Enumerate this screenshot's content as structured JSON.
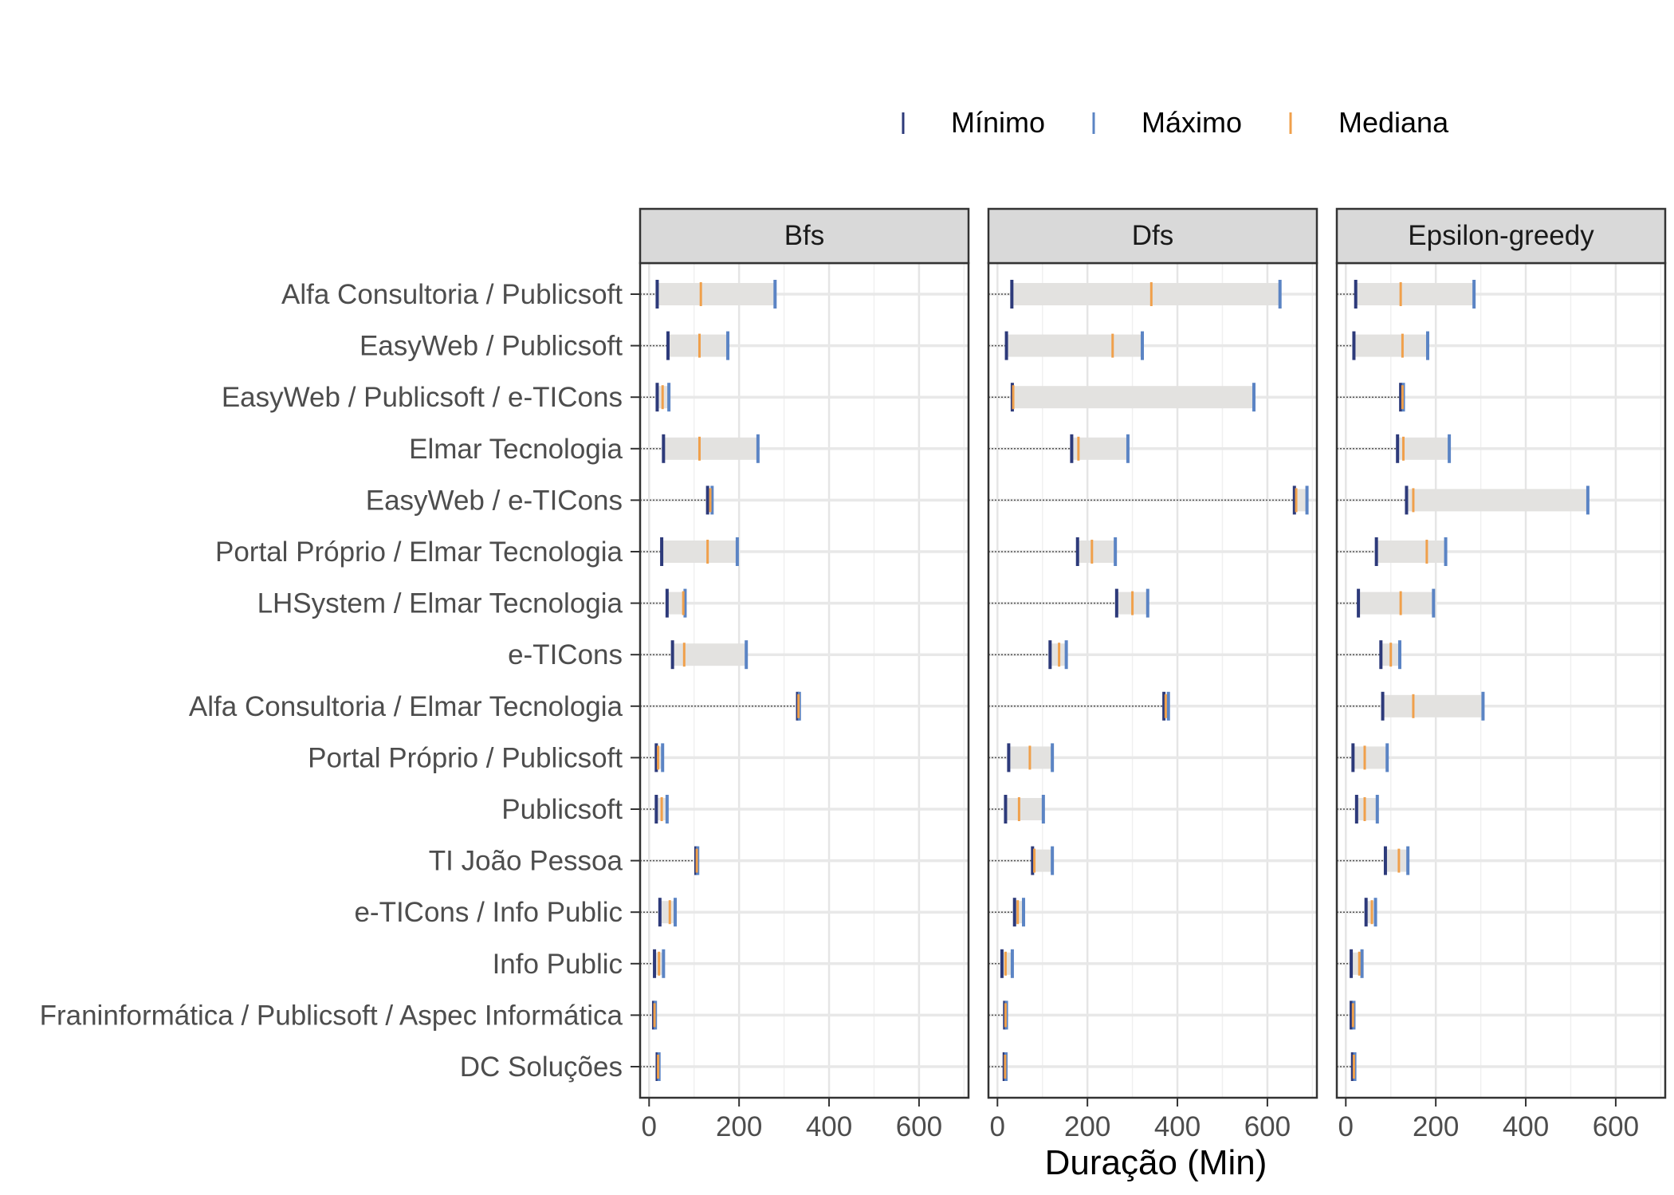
{
  "chart_data": {
    "type": "range",
    "xlabel": "Duração (Min)",
    "ylabel": "",
    "xlim": [
      -20,
      710
    ],
    "xticks": [
      0,
      200,
      400,
      600
    ],
    "grid": true,
    "legend": {
      "position": "top-right",
      "items": [
        {
          "name": "Mínimo",
          "key": "min",
          "color": "#2d3a7a"
        },
        {
          "name": "Máximo",
          "key": "max",
          "color": "#5b84c4"
        },
        {
          "name": "Mediana",
          "key": "median",
          "color": "#f0a04b"
        }
      ]
    },
    "categories": [
      "Alfa Consultoria / Publicsoft",
      "EasyWeb / Publicsoft",
      "EasyWeb / Publicsoft / e-TICons",
      "Elmar Tecnologia",
      "EasyWeb / e-TICons",
      "Portal Próprio / Elmar Tecnologia",
      "LHSystem / Elmar Tecnologia",
      "e-TICons",
      "Alfa Consultoria / Elmar Tecnologia",
      "Portal Próprio / Publicsoft",
      "Publicsoft",
      "TI João Pessoa",
      "e-TICons / Info Public",
      "Info Public",
      "Franinformática / Publicsoft / Aspec Informática",
      "DC Soluções"
    ],
    "panels": [
      {
        "name": "Bfs",
        "min": [
          18,
          42,
          18,
          32,
          130,
          28,
          40,
          52,
          330,
          16,
          16,
          104,
          24,
          12,
          10,
          18
        ],
        "median": [
          115,
          112,
          30,
          112,
          136,
          130,
          76,
          78,
          332,
          20,
          28,
          106,
          46,
          22,
          12,
          20
        ],
        "max": [
          280,
          175,
          44,
          242,
          140,
          196,
          80,
          216,
          334,
          30,
          40,
          108,
          58,
          32,
          14,
          22
        ]
      },
      {
        "name": "Dfs",
        "min": [
          32,
          20,
          33,
          165,
          660,
          178,
          265,
          117,
          370,
          25,
          18,
          78,
          38,
          10,
          16,
          15
        ],
        "median": [
          342,
          256,
          35,
          180,
          664,
          210,
          300,
          137,
          374,
          72,
          48,
          82,
          45,
          18,
          18,
          17
        ],
        "max": [
          628,
          322,
          570,
          290,
          688,
          262,
          334,
          153,
          380,
          122,
          102,
          122,
          58,
          33,
          20,
          19
        ]
      },
      {
        "name": "Epsilon-greedy",
        "min": [
          22,
          18,
          122,
          115,
          135,
          68,
          28,
          78,
          82,
          16,
          24,
          88,
          45,
          12,
          12,
          15
        ],
        "median": [
          122,
          126,
          126,
          128,
          150,
          180,
          122,
          100,
          150,
          42,
          42,
          118,
          58,
          30,
          16,
          18
        ],
        "max": [
          285,
          182,
          128,
          230,
          538,
          222,
          195,
          120,
          305,
          92,
          70,
          138,
          66,
          36,
          18,
          20
        ]
      }
    ]
  }
}
